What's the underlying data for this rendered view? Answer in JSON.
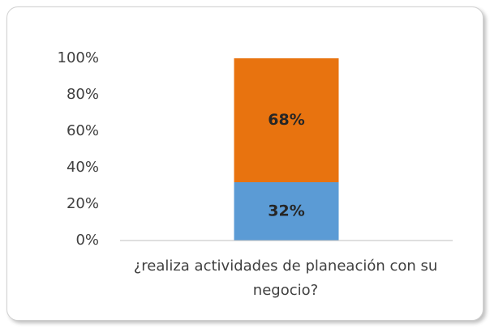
{
  "chart_data": {
    "type": "stacked_bar",
    "categories": [
      "¿realiza actividades de planeación con su negocio?"
    ],
    "series": [
      {
        "color": "#5b9bd5",
        "values": [
          32
        ],
        "value_labels": [
          "32%"
        ]
      },
      {
        "color": "#e8730f",
        "values": [
          68
        ],
        "value_labels": [
          "68%"
        ]
      }
    ],
    "ylim": [
      0,
      100
    ],
    "yticks": [
      {
        "value": 0,
        "label": "0%"
      },
      {
        "value": 20,
        "label": "20%"
      },
      {
        "value": 40,
        "label": "40%"
      },
      {
        "value": 60,
        "label": "60%"
      },
      {
        "value": 80,
        "label": "80%"
      },
      {
        "value": 100,
        "label": "100%"
      }
    ],
    "grid": false
  }
}
